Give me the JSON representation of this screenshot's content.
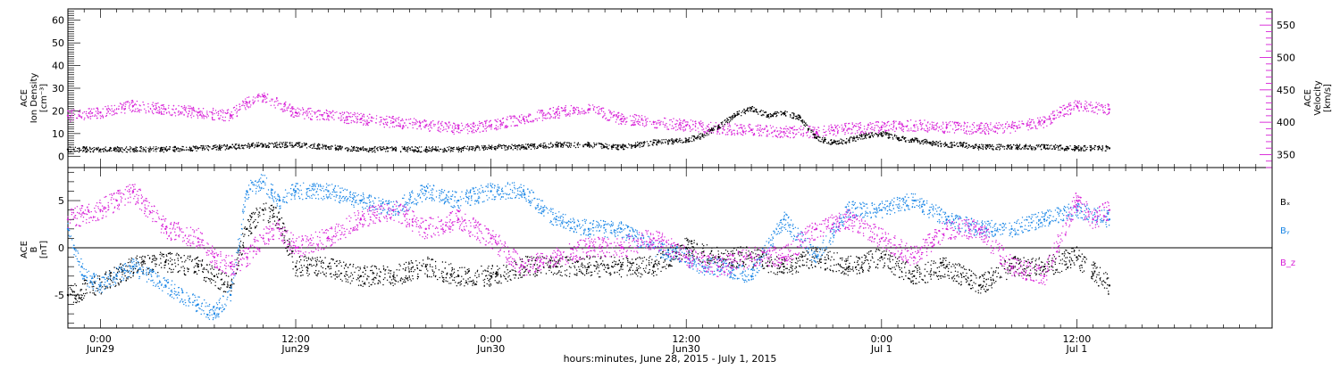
{
  "colors": {
    "black": "#000000",
    "magenta": "#d71fd7",
    "blue": "#1a86e6"
  },
  "chart_data": [
    {
      "type": "scatter",
      "panel": "top",
      "ylabel_left": [
        "ACE",
        "Ion Density",
        "[cm⁻³]"
      ],
      "ylabel_right": [
        "ACE",
        "Velocity",
        "[km/s]"
      ],
      "yticks_left": [
        "0",
        "10",
        "20",
        "30",
        "40",
        "50",
        "60"
      ],
      "yticks_right": [
        "350",
        "400",
        "450",
        "500",
        "550"
      ],
      "ylim_left": [
        -5,
        65
      ],
      "ylim_right": [
        330,
        575
      ],
      "series": [
        {
          "name": "Ion Density",
          "color": "#000000",
          "axis": "left",
          "x": [
            -2,
            0,
            2,
            4,
            6,
            8,
            10,
            12,
            14,
            16,
            18,
            20,
            22,
            24,
            26,
            28,
            30,
            32,
            34,
            36,
            37,
            38,
            39,
            40,
            41,
            42,
            43,
            44,
            45,
            46,
            47,
            48,
            49,
            50,
            51,
            52,
            53,
            54,
            56,
            58,
            60,
            62
          ],
          "y": [
            3,
            3,
            3,
            3,
            3.5,
            4,
            5,
            5,
            4,
            3,
            3,
            3,
            3,
            4,
            4,
            5,
            5,
            4,
            6,
            7,
            9,
            13,
            18,
            21,
            18,
            19,
            17,
            8,
            6,
            7,
            9,
            10,
            8,
            7,
            6,
            5,
            5,
            4,
            4,
            4,
            3.5,
            3.5
          ]
        },
        {
          "name": "Velocity",
          "color": "#d71fd7",
          "axis": "right",
          "x": [
            -2,
            0,
            2,
            4,
            6,
            8,
            9,
            10,
            12,
            14,
            16,
            18,
            20,
            22,
            24,
            26,
            28,
            30,
            32,
            34,
            36,
            38,
            40,
            42,
            44,
            46,
            48,
            50,
            52,
            54,
            56,
            58,
            59,
            60,
            62
          ],
          "y": [
            410,
            415,
            425,
            420,
            415,
            410,
            430,
            440,
            415,
            410,
            405,
            400,
            395,
            390,
            395,
            405,
            415,
            420,
            405,
            400,
            395,
            390,
            388,
            385,
            385,
            390,
            392,
            395,
            392,
            390,
            392,
            400,
            415,
            425,
            420
          ]
        }
      ]
    },
    {
      "type": "scatter",
      "panel": "bottom",
      "ylabel_left": [
        "ACE",
        "B",
        "[nT]"
      ],
      "yticks_left": [
        "-5",
        "0",
        "5"
      ],
      "ylim_left": [
        -8.5,
        8.5
      ],
      "zero_line": true,
      "legend": [
        "Bₓ",
        "Bᵧ",
        "B_z"
      ],
      "series": [
        {
          "name": "Bx",
          "color": "#000000",
          "x": [
            -2,
            0,
            2,
            4,
            6,
            7,
            8,
            9,
            10,
            11,
            12,
            14,
            16,
            18,
            20,
            22,
            24,
            26,
            28,
            30,
            32,
            34,
            36,
            38,
            40,
            42,
            44,
            46,
            48,
            50,
            52,
            54,
            56,
            58,
            60,
            62
          ],
          "y": [
            -5,
            -4,
            -2,
            -1.5,
            -2,
            -3,
            -4,
            2,
            4,
            3,
            -2,
            -2,
            -3,
            -3,
            -2,
            -3,
            -3,
            -2,
            -2,
            -2,
            -2,
            -2,
            0,
            -1,
            -1,
            -2,
            -1,
            -2,
            -1,
            -3,
            -2,
            -4,
            -2,
            -2,
            -1,
            -4
          ]
        },
        {
          "name": "By",
          "color": "#1a86e6",
          "x": [
            -2,
            -1,
            0,
            1,
            2,
            4,
            6,
            7,
            8,
            9,
            10,
            11,
            12,
            14,
            16,
            18,
            20,
            22,
            24,
            26,
            28,
            30,
            32,
            34,
            36,
            37,
            38,
            40,
            42,
            44,
            46,
            48,
            50,
            52,
            54,
            56,
            58,
            60,
            62
          ],
          "y": [
            2,
            -3,
            -4,
            -3,
            -2,
            -4,
            -6,
            -7,
            -5,
            6,
            7,
            5,
            6,
            6,
            5,
            4,
            6,
            5,
            6,
            6,
            3,
            2,
            2,
            0,
            -1,
            -2,
            -2,
            -3,
            3,
            -1,
            4,
            4,
            5,
            3,
            2,
            2,
            3,
            4,
            3
          ]
        },
        {
          "name": "Bz",
          "color": "#d71fd7",
          "x": [
            -2,
            0,
            1,
            2,
            4,
            6,
            7,
            8,
            9,
            10,
            11,
            12,
            14,
            16,
            18,
            20,
            22,
            24,
            26,
            28,
            30,
            32,
            34,
            36,
            38,
            40,
            42,
            44,
            46,
            48,
            50,
            52,
            54,
            56,
            58,
            60,
            61,
            62
          ],
          "y": [
            3,
            4,
            5,
            6,
            2,
            1,
            -1,
            -2,
            -1,
            1,
            2,
            0,
            1,
            3,
            4,
            2,
            3,
            1,
            -2,
            -1,
            0,
            0,
            1,
            -1,
            -2,
            -1,
            -1,
            2,
            3,
            1,
            -1,
            2,
            2,
            -2,
            -3,
            5,
            3,
            4
          ]
        }
      ],
      "x_ticks": [
        {
          "t": 0,
          "time": "0:00",
          "date": "Jun29"
        },
        {
          "t": 12,
          "time": "12:00",
          "date": "Jun29"
        },
        {
          "t": 24,
          "time": "0:00",
          "date": "Jun30"
        },
        {
          "t": 36,
          "time": "12:00",
          "date": "Jun30"
        },
        {
          "t": 48,
          "time": "0:00",
          "date": "Jul 1"
        },
        {
          "t": 60,
          "time": "12:00",
          "date": "Jul 1"
        }
      ],
      "xlim": [
        -2,
        72
      ],
      "xlabel": "hours:minutes, June 28, 2015 - July  1, 2015"
    }
  ]
}
